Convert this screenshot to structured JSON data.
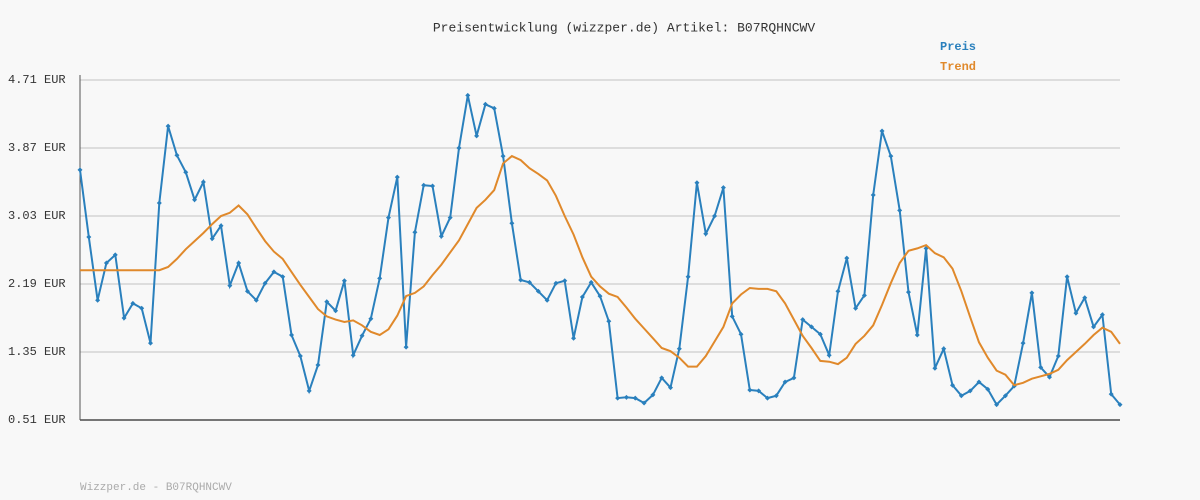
{
  "chart_data": {
    "type": "line",
    "title": "Preisentwicklung (wizzper.de) Artikel: B07RQHNCWV",
    "footer": "Wizzper.de - B07RQHNCWV",
    "categories": [
      null,
      null,
      null,
      null,
      null,
      null,
      null,
      null,
      null,
      null,
      null,
      null,
      null,
      null,
      null,
      null,
      null,
      null,
      null,
      null,
      null,
      null,
      null,
      null,
      null,
      null,
      null,
      null,
      null,
      null,
      null,
      null,
      null,
      null,
      null,
      null,
      null,
      null,
      null,
      null,
      null,
      null,
      null,
      null,
      null,
      null,
      null,
      null,
      null,
      null,
      null,
      null,
      null,
      null,
      null,
      null,
      null,
      null,
      null,
      null,
      null,
      null,
      null,
      null,
      null,
      null,
      null,
      null,
      null,
      null,
      null,
      null,
      null,
      null,
      null,
      null,
      null,
      null,
      null,
      null,
      null,
      null,
      null,
      null,
      null,
      null,
      null,
      null,
      null,
      null,
      null,
      null,
      null,
      null,
      null,
      null,
      null,
      null,
      null,
      null,
      null,
      null,
      null,
      null,
      null,
      null,
      null,
      null,
      null,
      null,
      null,
      null,
      null,
      null,
      null,
      null,
      null,
      null,
      null
    ],
    "series": [
      {
        "name": "Preis",
        "color": "#2a80bd",
        "markers": true,
        "values": [
          3.6,
          2.77,
          1.99,
          2.45,
          2.55,
          1.77,
          1.95,
          1.89,
          1.46,
          3.19,
          4.14,
          3.78,
          3.57,
          3.23,
          3.45,
          2.75,
          2.91,
          2.17,
          2.45,
          2.1,
          1.99,
          2.2,
          2.34,
          2.28,
          1.56,
          1.3,
          0.87,
          1.19,
          1.97,
          1.86,
          2.23,
          1.31,
          1.55,
          1.76,
          2.26,
          3.01,
          3.51,
          1.41,
          2.83,
          3.41,
          3.4,
          2.78,
          3.01,
          3.87,
          4.52,
          4.02,
          4.41,
          4.36,
          3.77,
          2.94,
          2.24,
          2.21,
          2.1,
          1.99,
          2.2,
          2.23,
          1.52,
          2.03,
          2.21,
          2.04,
          1.73,
          0.78,
          0.79,
          0.78,
          0.72,
          0.82,
          1.03,
          0.91,
          1.39,
          2.28,
          3.44,
          2.81,
          3.03,
          3.38,
          1.79,
          1.57,
          0.88,
          0.87,
          0.78,
          0.81,
          0.98,
          1.03,
          1.75,
          1.66,
          1.57,
          1.31,
          2.1,
          2.51,
          1.89,
          2.05,
          3.29,
          4.08,
          3.77,
          3.1,
          2.09,
          1.56,
          2.63,
          1.15,
          1.39,
          0.94,
          0.81,
          0.87,
          0.98,
          0.89,
          0.7,
          0.81,
          0.93,
          1.46,
          2.08,
          1.16,
          1.04,
          1.3,
          2.28,
          1.83,
          2.02,
          1.66,
          1.81,
          0.83,
          0.7
        ]
      },
      {
        "name": "Trend",
        "color": "#e0892b",
        "markers": false,
        "values": [
          2.36,
          2.36,
          2.36,
          2.36,
          2.36,
          2.36,
          2.36,
          2.36,
          2.36,
          2.36,
          2.4,
          2.5,
          2.62,
          2.72,
          2.82,
          2.93,
          3.03,
          3.07,
          3.16,
          3.05,
          2.88,
          2.72,
          2.59,
          2.5,
          2.34,
          2.18,
          2.03,
          1.88,
          1.79,
          1.75,
          1.72,
          1.74,
          1.68,
          1.6,
          1.56,
          1.63,
          1.8,
          2.04,
          2.08,
          2.16,
          2.3,
          2.43,
          2.58,
          2.73,
          2.93,
          3.13,
          3.23,
          3.35,
          3.68,
          3.77,
          3.72,
          3.62,
          3.55,
          3.47,
          3.28,
          3.03,
          2.8,
          2.52,
          2.28,
          2.16,
          2.07,
          2.03,
          1.9,
          1.76,
          1.64,
          1.52,
          1.4,
          1.36,
          1.28,
          1.17,
          1.17,
          1.3,
          1.48,
          1.66,
          1.95,
          2.06,
          2.14,
          2.13,
          2.13,
          2.1,
          1.95,
          1.75,
          1.55,
          1.4,
          1.24,
          1.23,
          1.2,
          1.28,
          1.45,
          1.55,
          1.68,
          1.93,
          2.2,
          2.45,
          2.6,
          2.63,
          2.67,
          2.57,
          2.52,
          2.38,
          2.1,
          1.78,
          1.47,
          1.28,
          1.12,
          1.07,
          0.94,
          0.97,
          1.02,
          1.05,
          1.08,
          1.13,
          1.25,
          1.35,
          1.45,
          1.56,
          1.65,
          1.6,
          1.45
        ]
      }
    ],
    "ylim": [
      0.51,
      4.71
    ],
    "yticks": [
      {
        "value": 0.51,
        "label": "0.51 EUR"
      },
      {
        "value": 1.35,
        "label": "1.35 EUR"
      },
      {
        "value": 2.19,
        "label": "2.19 EUR"
      },
      {
        "value": 3.03,
        "label": "3.03 EUR"
      },
      {
        "value": 3.87,
        "label": "3.87 EUR"
      },
      {
        "value": 4.71,
        "label": "4.71 EUR"
      }
    ],
    "grid": true
  }
}
